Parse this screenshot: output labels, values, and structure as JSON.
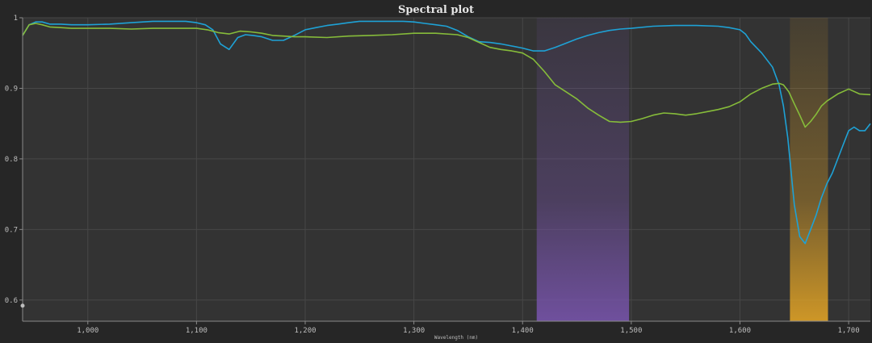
{
  "window": {
    "title": "Spectral plot"
  },
  "chart_data": {
    "type": "line",
    "title": "Spectral plot",
    "xlabel": "Wavelength (nm)",
    "ylabel": "",
    "xlim": [
      940,
      1720
    ],
    "ylim": [
      0.57,
      1.0
    ],
    "xticks": [
      1000,
      1100,
      1200,
      1300,
      1400,
      1500,
      1600,
      1700
    ],
    "xtick_labels": [
      "1,000",
      "1,100",
      "1,200",
      "1,300",
      "1,400",
      "1,500",
      "1,600",
      "1,700"
    ],
    "yticks": [
      0.6,
      0.7,
      0.8,
      0.9,
      1.0
    ],
    "ytick_labels": [
      "0.6",
      "0.7",
      "0.8",
      "0.9",
      "1"
    ],
    "grid": true,
    "bands": [
      {
        "from": 1413,
        "to": 1498,
        "color": "#7a55b0"
      },
      {
        "from": 1646,
        "to": 1681,
        "color": "#e9a825"
      }
    ],
    "series": [
      {
        "color": "#1ea2d6",
        "x": [
          940,
          946,
          952,
          958,
          965,
          975,
          985,
          1000,
          1020,
          1040,
          1060,
          1080,
          1090,
          1100,
          1108,
          1115,
          1122,
          1130,
          1138,
          1145,
          1152,
          1160,
          1170,
          1180,
          1190,
          1200,
          1210,
          1220,
          1230,
          1240,
          1250,
          1260,
          1270,
          1280,
          1290,
          1300,
          1310,
          1320,
          1330,
          1340,
          1350,
          1360,
          1370,
          1380,
          1390,
          1400,
          1410,
          1420,
          1430,
          1440,
          1450,
          1460,
          1470,
          1480,
          1490,
          1500,
          1520,
          1540,
          1560,
          1580,
          1590,
          1600,
          1605,
          1610,
          1620,
          1630,
          1636,
          1640,
          1644,
          1650,
          1655,
          1660,
          1665,
          1670,
          1675,
          1680,
          1685,
          1690,
          1695,
          1700,
          1705,
          1710,
          1715,
          1720
        ],
        "values": [
          0.975,
          0.99,
          0.994,
          0.994,
          0.991,
          0.991,
          0.99,
          0.99,
          0.991,
          0.993,
          0.995,
          0.995,
          0.995,
          0.993,
          0.99,
          0.983,
          0.963,
          0.955,
          0.972,
          0.976,
          0.975,
          0.973,
          0.968,
          0.968,
          0.975,
          0.983,
          0.986,
          0.989,
          0.991,
          0.993,
          0.995,
          0.995,
          0.995,
          0.995,
          0.995,
          0.994,
          0.992,
          0.99,
          0.988,
          0.982,
          0.973,
          0.966,
          0.965,
          0.963,
          0.96,
          0.957,
          0.953,
          0.953,
          0.958,
          0.964,
          0.97,
          0.975,
          0.979,
          0.982,
          0.984,
          0.985,
          0.988,
          0.989,
          0.989,
          0.988,
          0.986,
          0.983,
          0.977,
          0.966,
          0.95,
          0.93,
          0.905,
          0.875,
          0.83,
          0.735,
          0.69,
          0.68,
          0.7,
          0.72,
          0.745,
          0.765,
          0.78,
          0.8,
          0.82,
          0.84,
          0.845,
          0.84,
          0.84,
          0.85
        ]
      },
      {
        "color": "#86bc3a",
        "x": [
          940,
          946,
          952,
          958,
          965,
          975,
          985,
          1000,
          1020,
          1040,
          1060,
          1080,
          1100,
          1110,
          1120,
          1130,
          1140,
          1150,
          1160,
          1170,
          1180,
          1190,
          1200,
          1220,
          1240,
          1260,
          1280,
          1300,
          1320,
          1340,
          1350,
          1360,
          1370,
          1380,
          1390,
          1400,
          1410,
          1420,
          1430,
          1440,
          1450,
          1460,
          1470,
          1480,
          1490,
          1500,
          1510,
          1520,
          1530,
          1540,
          1550,
          1560,
          1570,
          1580,
          1590,
          1600,
          1610,
          1620,
          1630,
          1636,
          1640,
          1645,
          1650,
          1655,
          1660,
          1665,
          1670,
          1675,
          1680,
          1690,
          1700,
          1710,
          1720
        ],
        "values": [
          0.975,
          0.99,
          0.992,
          0.99,
          0.987,
          0.986,
          0.985,
          0.985,
          0.985,
          0.984,
          0.985,
          0.985,
          0.985,
          0.983,
          0.979,
          0.977,
          0.981,
          0.98,
          0.978,
          0.975,
          0.974,
          0.973,
          0.973,
          0.972,
          0.974,
          0.975,
          0.976,
          0.978,
          0.978,
          0.976,
          0.972,
          0.965,
          0.958,
          0.955,
          0.953,
          0.95,
          0.941,
          0.924,
          0.905,
          0.895,
          0.885,
          0.872,
          0.862,
          0.853,
          0.852,
          0.853,
          0.857,
          0.862,
          0.865,
          0.864,
          0.862,
          0.864,
          0.867,
          0.87,
          0.874,
          0.881,
          0.892,
          0.9,
          0.906,
          0.907,
          0.905,
          0.895,
          0.878,
          0.862,
          0.845,
          0.853,
          0.863,
          0.875,
          0.882,
          0.892,
          0.899,
          0.892,
          0.891
        ]
      }
    ]
  }
}
